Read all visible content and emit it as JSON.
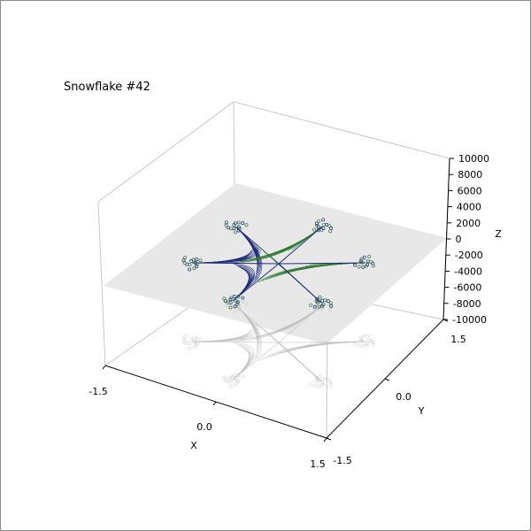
{
  "chart_data": {
    "type": "surface-3d",
    "title": "Snowflake #42",
    "xlabel": "X",
    "ylabel": "Y",
    "zlabel": "Z",
    "xlim": [
      -1.5,
      1.5
    ],
    "ylim": [
      -1.5,
      1.5
    ],
    "zlim": [
      -10000,
      10000
    ],
    "x_ticks": [
      "-1.5",
      "0.0",
      "1.5"
    ],
    "y_ticks": [
      "-1.5",
      "0.0",
      "1.5"
    ],
    "z_ticks": [
      "10000",
      "8000",
      "6000",
      "4000",
      "2000",
      "0",
      "-2000",
      "-4000",
      "-6000",
      "-8000",
      "-10000"
    ],
    "arms": 6,
    "grid": true,
    "colors": {
      "curves_a": "#1f2a7a",
      "curves_b": "#2e7d32",
      "plane": "#e8e8e8",
      "shadow": "#bdbdbd",
      "frame": "#c8c8c8"
    }
  }
}
